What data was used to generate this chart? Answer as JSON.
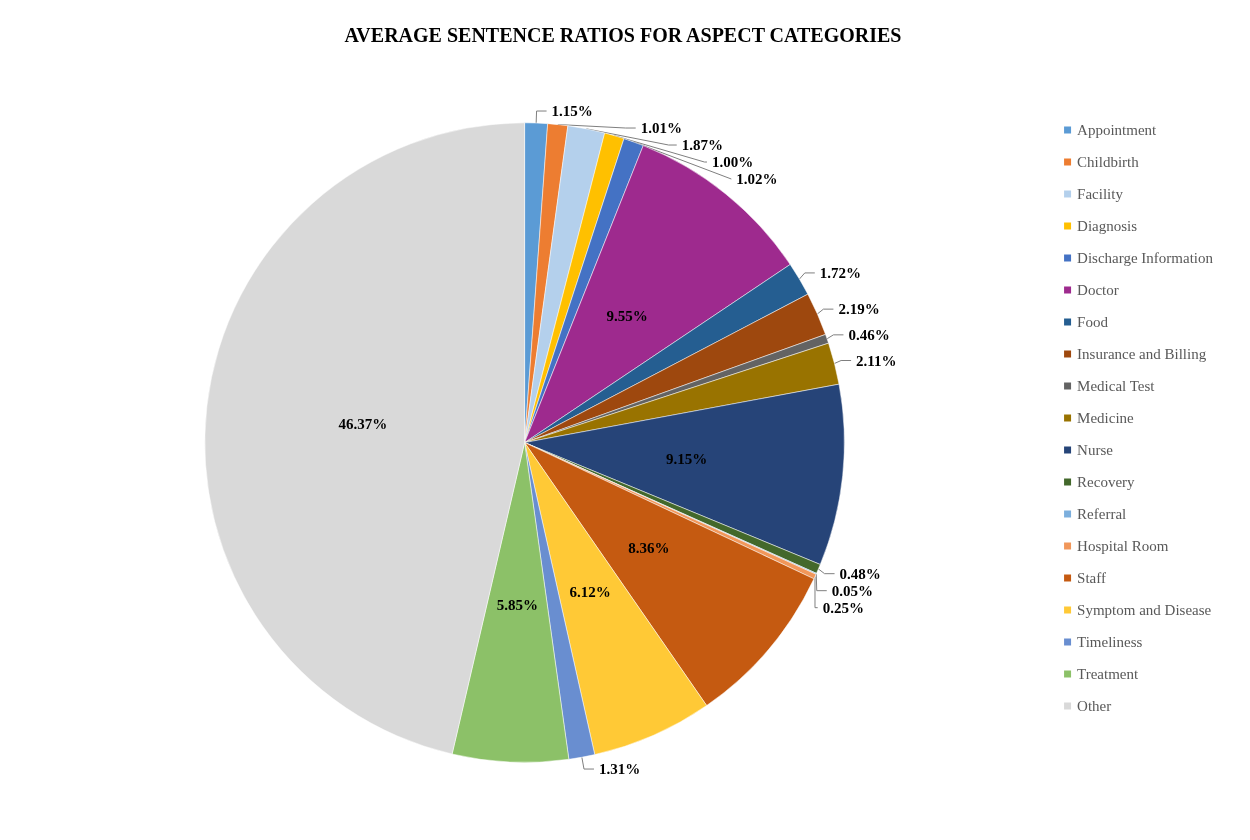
{
  "chart_data": {
    "type": "pie",
    "title": "AVERAGE SENTENCE RATIOS FOR ASPECT CATEGORIES",
    "categories": [
      "Appointment",
      "Childbirth",
      "Facility",
      "Diagnosis",
      "Discharge Information",
      "Doctor",
      "Food",
      "Insurance and Billing",
      "Medical Test",
      "Medicine",
      "Nurse",
      "Recovery",
      "Referral",
      "Hospital Room",
      "Staff",
      "Symptom and Disease",
      "Timeliness",
      "Treatment",
      "Other"
    ],
    "values": [
      1.15,
      1.01,
      1.87,
      1.0,
      1.02,
      9.55,
      1.72,
      2.19,
      0.46,
      2.11,
      9.15,
      0.48,
      0.05,
      0.25,
      8.36,
      6.12,
      1.31,
      5.85,
      46.37
    ],
    "value_labels": [
      "1.15%",
      "1.01%",
      "1.87%",
      "1.00%",
      "1.02%",
      "9.55%",
      "1.72%",
      "2.19%",
      "0.46%",
      "2.11%",
      "9.15%",
      "0.48%",
      "0.05%",
      "0.25%",
      "8.36%",
      "6.12%",
      "1.31%",
      "5.85%",
      "46.37%"
    ],
    "colors": [
      "#5b9bd5",
      "#ed7d31",
      "#b4d0ec",
      "#ffc000",
      "#4472c4",
      "#9e2a8e",
      "#255e91",
      "#9e480e",
      "#636363",
      "#997300",
      "#264478",
      "#43682b",
      "#7cafdd",
      "#f1975a",
      "#c55a11",
      "#ffc936",
      "#698ed0",
      "#8cc168",
      "#d9d9d9"
    ],
    "legend": "right"
  }
}
